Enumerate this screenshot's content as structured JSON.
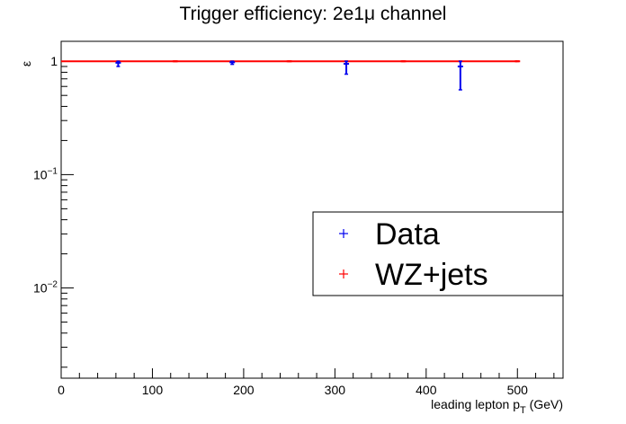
{
  "chart_data": {
    "type": "scatter",
    "title": "Trigger efficiency: 2e1μ channel",
    "xlabel": "leading lepton p",
    "xlabel_sub": "T",
    "xlabel_unit": " (GeV)",
    "ylabel": "ε",
    "xlim": [
      0,
      550
    ],
    "ylim": [
      0.0016,
      1.5
    ],
    "yscale": "log",
    "x_ticks": [
      0,
      100,
      200,
      300,
      400,
      500
    ],
    "x_tick_labels": [
      "0",
      "100",
      "200",
      "300",
      "400",
      "500"
    ],
    "y_ticks": [
      {
        "value": 1,
        "base": "1",
        "exp": ""
      },
      {
        "value": 0.1,
        "base": "10",
        "exp": "−1"
      },
      {
        "value": 0.01,
        "base": "10",
        "exp": "−2"
      }
    ],
    "grid": false,
    "legend_position": "right",
    "series": [
      {
        "name": "Data",
        "color": "#0000ee",
        "x": [
          62.5,
          187.5,
          312.5,
          437.5
        ],
        "y": [
          0.97,
          0.98,
          0.95,
          0.9
        ],
        "x_err": [
          0,
          0,
          0,
          0
        ],
        "y_err_low": [
          0.07,
          0.04,
          0.18,
          0.34
        ],
        "y_err_high": [
          0.03,
          0.02,
          0.05,
          0.1
        ]
      },
      {
        "name": "WZ+jets",
        "color": "#ff0000",
        "x": [
          62.5,
          125,
          187.5,
          250,
          312.5,
          375,
          437.5,
          500
        ],
        "y": [
          1.0,
          1.0,
          1.0,
          1.0,
          1.0,
          1.0,
          1.0,
          1.0
        ],
        "x_err": [
          62.5,
          0,
          62.5,
          0,
          62.5,
          0,
          62.5,
          0
        ],
        "y_err_low": [
          0.005,
          0.005,
          0.005,
          0.005,
          0.005,
          0.005,
          0.005,
          0.005
        ],
        "y_err_high": [
          0.005,
          0.005,
          0.005,
          0.005,
          0.005,
          0.005,
          0.005,
          0.005
        ]
      }
    ]
  }
}
